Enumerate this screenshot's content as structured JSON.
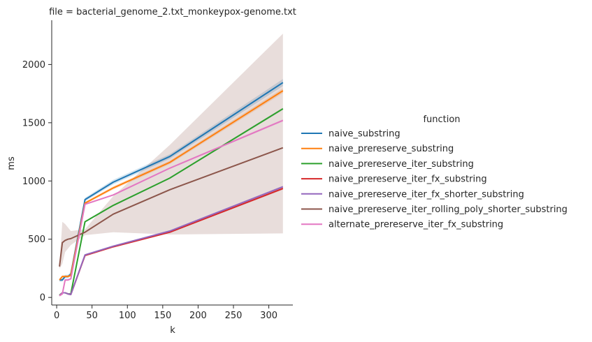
{
  "chart_data": {
    "type": "line",
    "title": "file = bacterial_genome_2.txt_monkeypox-genome.txt",
    "xlabel": "k",
    "ylabel": "ms",
    "xlim": [
      -7,
      334
    ],
    "ylim": [
      -65,
      2380
    ],
    "xticks": [
      0,
      50,
      100,
      150,
      200,
      250,
      300
    ],
    "yticks": [
      0,
      500,
      1000,
      1500,
      2000
    ],
    "grid": false,
    "legend": {
      "title": "function",
      "placement": "right"
    },
    "x": [
      4,
      8,
      12,
      16,
      20,
      40,
      80,
      160,
      320
    ],
    "series": [
      {
        "name": "naive_substring",
        "color": "#1f77b4",
        "values": [
          150,
          150,
          180,
          180,
          200,
          840,
          990,
          1210,
          1845
        ],
        "band": [
          [
            135,
            165
          ],
          [
            135,
            165
          ],
          [
            165,
            195
          ],
          [
            165,
            195
          ],
          [
            185,
            215
          ],
          [
            825,
            855
          ],
          [
            970,
            1010
          ],
          [
            1190,
            1230
          ],
          [
            1815,
            1875
          ]
        ]
      },
      {
        "name": "naive_prereserve_substring",
        "color": "#ff7f0e",
        "values": [
          150,
          180,
          180,
          180,
          190,
          810,
          940,
          1160,
          1775
        ],
        "band": [
          [
            140,
            160
          ],
          [
            170,
            190
          ],
          [
            170,
            190
          ],
          [
            170,
            190
          ],
          [
            180,
            200
          ],
          [
            800,
            820
          ],
          [
            925,
            955
          ],
          [
            1145,
            1175
          ],
          [
            1755,
            1795
          ]
        ]
      },
      {
        "name": "naive_prereserve_iter_substring",
        "color": "#2ca02c",
        "values": [
          20,
          40,
          40,
          30,
          30,
          650,
          790,
          1025,
          1620
        ],
        "band": [
          [
            15,
            25
          ],
          [
            35,
            45
          ],
          [
            35,
            45
          ],
          [
            25,
            35
          ],
          [
            25,
            35
          ],
          [
            645,
            655
          ],
          [
            785,
            795
          ],
          [
            1020,
            1030
          ],
          [
            1610,
            1630
          ]
        ]
      },
      {
        "name": "naive_prereserve_iter_fx_substring",
        "color": "#d62728",
        "values": [
          15,
          40,
          40,
          30,
          25,
          360,
          435,
          560,
          935
        ],
        "band": [
          [
            10,
            20
          ],
          [
            35,
            45
          ],
          [
            35,
            45
          ],
          [
            25,
            35
          ],
          [
            20,
            30
          ],
          [
            355,
            365
          ],
          [
            430,
            440
          ],
          [
            555,
            565
          ],
          [
            925,
            945
          ]
        ]
      },
      {
        "name": "naive_prereserve_iter_fx_shorter_substring",
        "color": "#9467bd",
        "values": [
          15,
          40,
          40,
          30,
          25,
          365,
          440,
          570,
          950
        ],
        "band": [
          [
            10,
            20
          ],
          [
            35,
            45
          ],
          [
            35,
            45
          ],
          [
            25,
            35
          ],
          [
            20,
            30
          ],
          [
            360,
            370
          ],
          [
            435,
            445
          ],
          [
            565,
            575
          ],
          [
            940,
            960
          ]
        ]
      },
      {
        "name": "naive_prereserve_iter_rolling_poly_shorter_substring",
        "color": "#8c564b",
        "values": [
          265,
          470,
          490,
          500,
          505,
          560,
          715,
          925,
          1285
        ],
        "band": [
          [
            245,
            285
          ],
          [
            290,
            650
          ],
          [
            390,
            630
          ],
          [
            420,
            600
          ],
          [
            450,
            570
          ],
          [
            535,
            585
          ],
          [
            560,
            870
          ],
          [
            540,
            1310
          ],
          [
            550,
            2265
          ]
        ]
      },
      {
        "name": "alternate_prereserve_iter_fx_substring",
        "color": "#e377c2",
        "values": [
          15,
          30,
          150,
          150,
          160,
          800,
          880,
          1110,
          1520
        ],
        "band": [
          [
            10,
            20
          ],
          [
            25,
            35
          ],
          [
            140,
            160
          ],
          [
            140,
            160
          ],
          [
            150,
            170
          ],
          [
            795,
            805
          ],
          [
            875,
            885
          ],
          [
            1105,
            1115
          ],
          [
            1510,
            1530
          ]
        ]
      }
    ]
  }
}
